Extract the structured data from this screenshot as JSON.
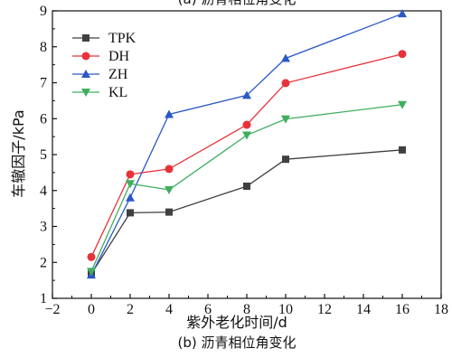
{
  "chart_data": {
    "type": "line",
    "title": "(a) 沥青相位角变化",
    "caption": "(b) 沥青相位角变化",
    "xlabel": "紫外老化时间/d",
    "ylabel": "车辙因子/kPa",
    "xlim": [
      -2,
      18
    ],
    "ylim": [
      1,
      9
    ],
    "xticks": [
      -2,
      0,
      2,
      4,
      6,
      8,
      10,
      12,
      14,
      16,
      18
    ],
    "yticks": [
      1,
      2,
      3,
      4,
      5,
      6,
      7,
      8,
      9
    ],
    "x": [
      0,
      2,
      4,
      8,
      10,
      16
    ],
    "legend_position": "top-left",
    "grid": false,
    "series": [
      {
        "name": "TPK",
        "color": "#404040",
        "marker": "square",
        "values": [
          1.68,
          3.38,
          3.4,
          4.12,
          4.87,
          5.13
        ]
      },
      {
        "name": "DH",
        "color": "#e8323a",
        "marker": "circle",
        "values": [
          2.15,
          4.45,
          4.6,
          5.83,
          6.99,
          7.8
        ]
      },
      {
        "name": "ZH",
        "color": "#2a59c4",
        "marker": "triangle-up",
        "values": [
          1.65,
          3.8,
          6.12,
          6.65,
          7.68,
          8.92
        ]
      },
      {
        "name": "KL",
        "color": "#3fae5e",
        "marker": "triangle-down",
        "values": [
          1.75,
          4.19,
          4.02,
          5.54,
          5.99,
          6.39
        ]
      }
    ]
  }
}
